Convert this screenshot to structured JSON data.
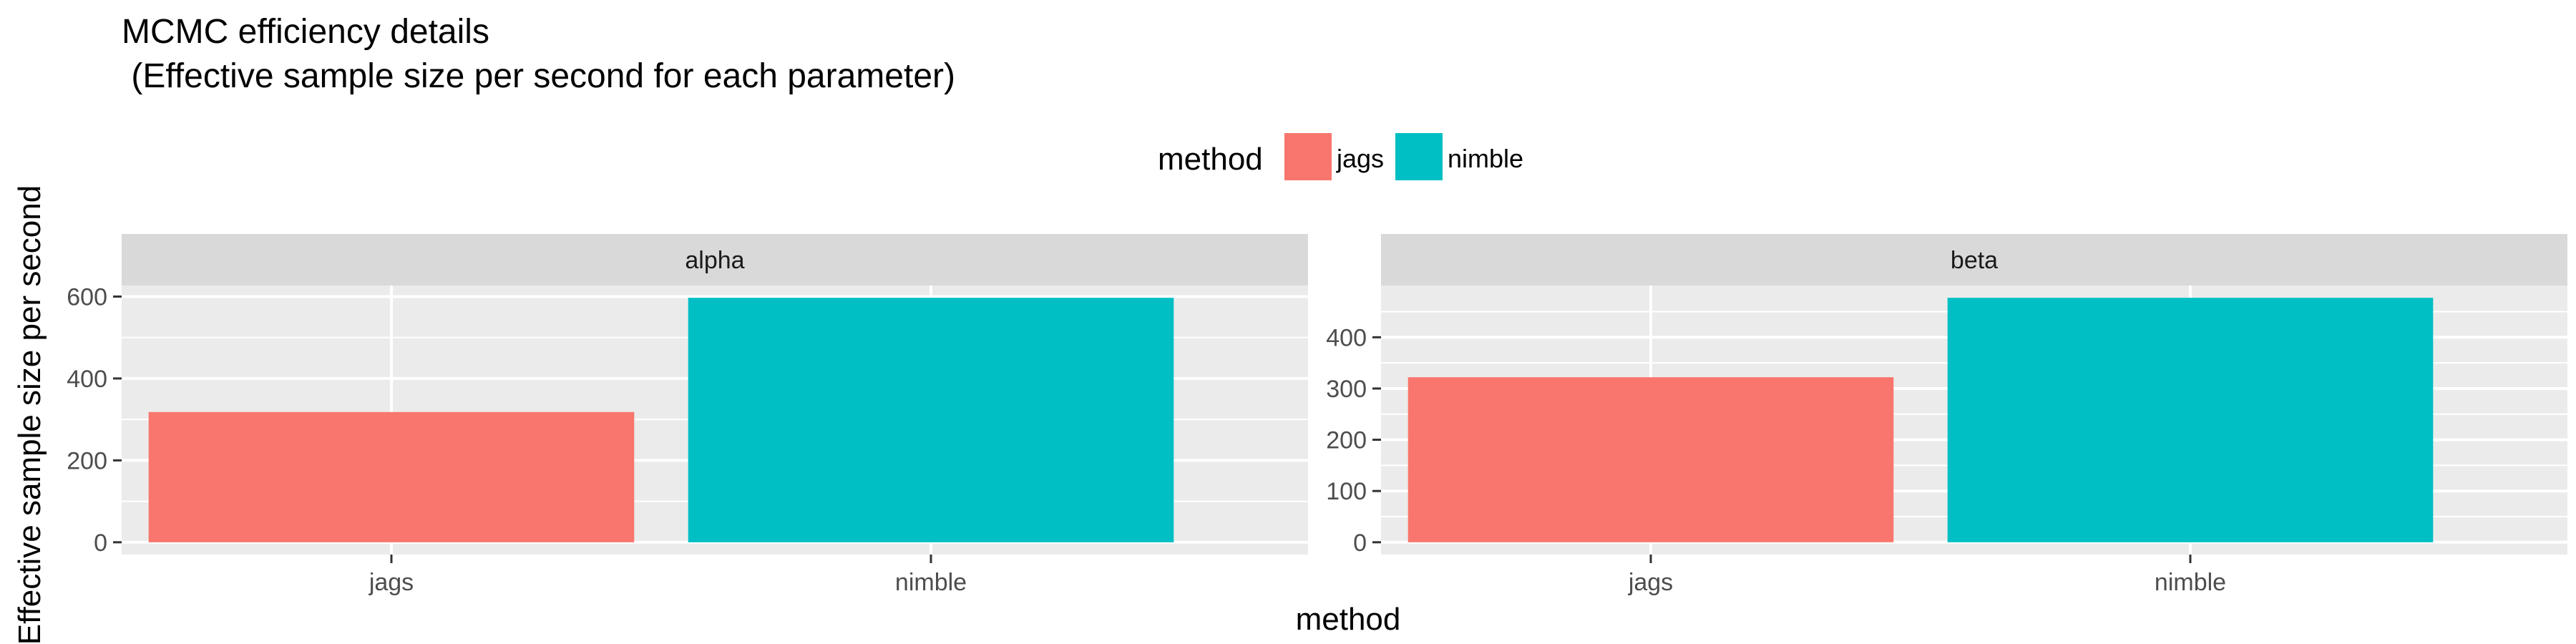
{
  "chart_data": {
    "type": "bar",
    "title": "MCMC efficiency details",
    "subtitle": " (Effective sample size per second for each parameter)",
    "xlabel": "method",
    "ylabel": "Effective sample size per second",
    "legend": {
      "title": "method",
      "placement": "top",
      "items": [
        {
          "label": "jags",
          "color": "#F8766D"
        },
        {
          "label": "nimble",
          "color": "#00BFC4"
        }
      ]
    },
    "categories": [
      "jags",
      "nimble"
    ],
    "grid": true,
    "facets": [
      {
        "name": "alpha",
        "values": [
          318,
          597
        ],
        "ylim": [
          -30,
          627
        ],
        "yticks": [
          0,
          200,
          400,
          600
        ]
      },
      {
        "name": "beta",
        "values": [
          322,
          477
        ],
        "ylim": [
          -24,
          501
        ],
        "yticks": [
          0,
          100,
          200,
          300,
          400
        ]
      }
    ]
  }
}
